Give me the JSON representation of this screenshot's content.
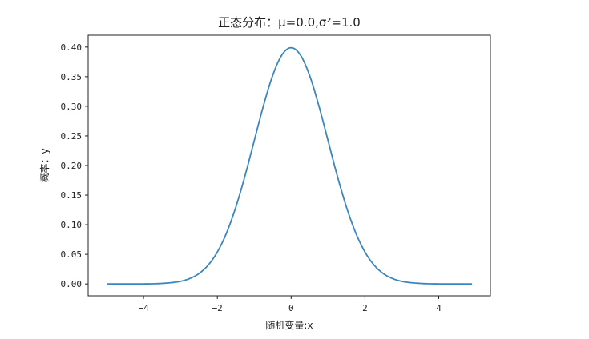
{
  "chart_data": {
    "type": "line",
    "title": "正态分布：μ=0.0,σ²=1.0",
    "xlabel": "随机变量:x",
    "ylabel": "概率：y",
    "xlim": [
      -5.5,
      5.4
    ],
    "ylim": [
      -0.02,
      0.42
    ],
    "xticks": [
      -4,
      -2,
      0,
      2,
      4
    ],
    "xtick_labels": [
      "−4",
      "−2",
      "0",
      "2",
      "4"
    ],
    "yticks": [
      0.0,
      0.05,
      0.1,
      0.15,
      0.2,
      0.25,
      0.3,
      0.35,
      0.4
    ],
    "ytick_labels": [
      "0.00",
      "0.05",
      "0.10",
      "0.15",
      "0.20",
      "0.25",
      "0.30",
      "0.35",
      "0.40"
    ],
    "grid": false,
    "legend": false,
    "series_color": "#3a86c0",
    "series": [
      {
        "x": [
          -5.0,
          -4.5,
          -4.0,
          -3.5,
          -3.0,
          -2.75,
          -2.5,
          -2.25,
          -2.0,
          -1.75,
          -1.5,
          -1.25,
          -1.0,
          -0.75,
          -0.5,
          -0.25,
          0.0,
          0.25,
          0.5,
          0.75,
          1.0,
          1.25,
          1.5,
          1.75,
          2.0,
          2.25,
          2.5,
          2.75,
          3.0,
          3.5,
          4.0,
          4.5,
          4.9
        ],
        "y": [
          0.0,
          0.0,
          0.0001,
          0.0009,
          0.0044,
          0.0091,
          0.0175,
          0.0317,
          0.054,
          0.0863,
          0.1295,
          0.1826,
          0.242,
          0.3011,
          0.3521,
          0.3867,
          0.3989,
          0.3867,
          0.3521,
          0.3011,
          0.242,
          0.1826,
          0.1295,
          0.0863,
          0.054,
          0.0317,
          0.0175,
          0.0091,
          0.0044,
          0.0009,
          0.0001,
          0.0,
          0.0
        ]
      }
    ]
  }
}
